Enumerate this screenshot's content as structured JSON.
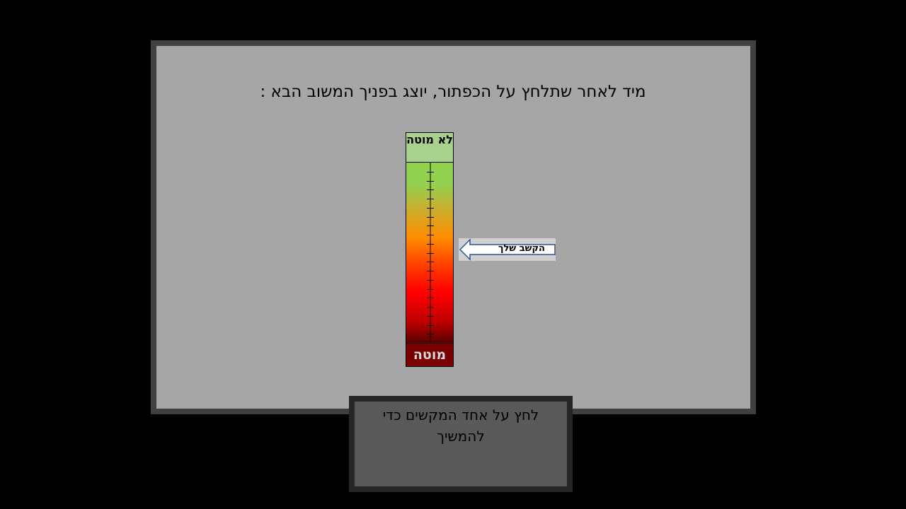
{
  "instruction": "מיד לאחר שתלחץ על הכפתור, יוצג בפניך המשוב הבא :",
  "scale": {
    "top_label": "לא מוטה",
    "bottom_label": "מוטה",
    "tick_count": 20,
    "colors": {
      "top": "#a9d18e",
      "gradient_start": "#92d050",
      "gradient_mid": "#ff8c00",
      "gradient_red": "#ff0000",
      "gradient_end": "#5a0000",
      "bottom": "#7b0000"
    }
  },
  "pointer": {
    "label": "הקשב שלך",
    "icon": "left-arrow-icon"
  },
  "continue_button": {
    "label": "לחץ על אחד המקשים כדי להמשיך"
  },
  "colors": {
    "background": "#000000",
    "panel": "#a6a6a6",
    "panel_border": "#404040",
    "button_fill": "#595959",
    "button_border": "#262626"
  }
}
